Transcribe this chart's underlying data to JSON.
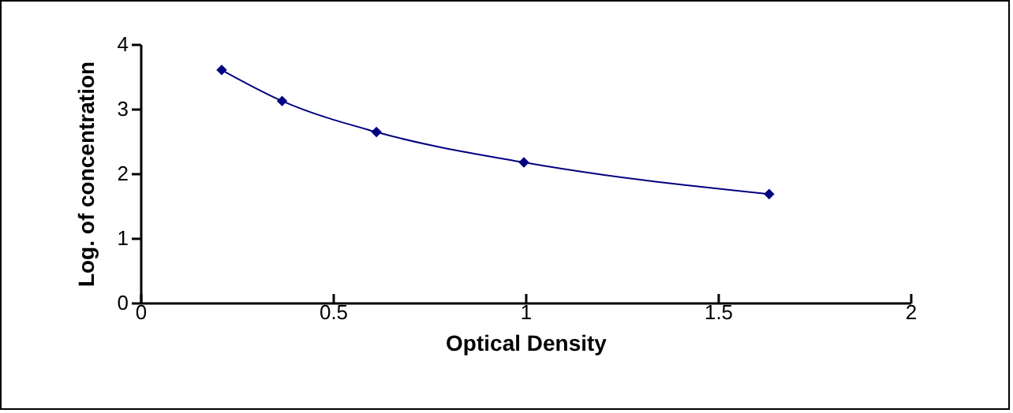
{
  "chart_data": {
    "type": "line",
    "xlabel": "Optical Density",
    "ylabel": "Log. of concentration",
    "x": [
      0.211,
      0.368,
      0.613,
      0.996,
      1.633
    ],
    "series": [
      {
        "color": "#000080",
        "values": [
          3.6,
          3.12,
          2.64,
          2.17,
          1.68
        ]
      }
    ],
    "xlim": [
      0,
      2
    ],
    "xticks": [
      0,
      0.5,
      1,
      1.5,
      2
    ],
    "ylim": [
      0,
      4
    ],
    "yticks": [
      0,
      1,
      2,
      3,
      4
    ],
    "marker": "diamond",
    "line_style": "solid"
  }
}
